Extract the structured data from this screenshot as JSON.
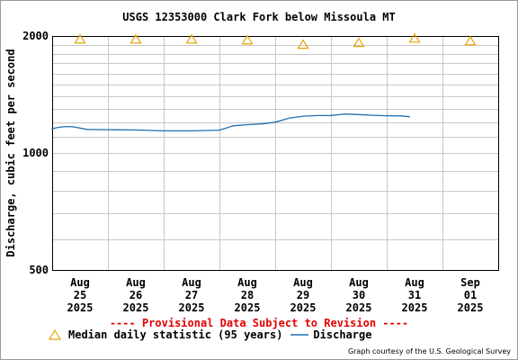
{
  "title": "USGS 12353000 Clark Fork below Missoula MT",
  "provisional_notice": "---- Provisional Data Subject to Revision ----",
  "legend": {
    "median_label": "Median daily statistic (95 years)",
    "discharge_label": "Discharge"
  },
  "credit": "Graph courtesy of the U.S. Geological Survey",
  "colors": {
    "discharge": "#1f6fb0",
    "median": "#e8a200",
    "grid": "#c8c8c8",
    "provisional": "#e00000"
  },
  "chart_data": {
    "type": "line",
    "ylabel": "Discharge, cubic feet per second",
    "yscale": "log",
    "ylim": [
      500,
      2000
    ],
    "ytick_labels": [
      "2000",
      "1000",
      "500"
    ],
    "x_ticks": [
      {
        "lines": [
          "Aug",
          "25",
          "2025"
        ]
      },
      {
        "lines": [
          "Aug",
          "26",
          "2025"
        ]
      },
      {
        "lines": [
          "Aug",
          "27",
          "2025"
        ]
      },
      {
        "lines": [
          "Aug",
          "28",
          "2025"
        ]
      },
      {
        "lines": [
          "Aug",
          "29",
          "2025"
        ]
      },
      {
        "lines": [
          "Aug",
          "30",
          "2025"
        ]
      },
      {
        "lines": [
          "Aug",
          "31",
          "2025"
        ]
      },
      {
        "lines": [
          "Sep",
          "01",
          "2025"
        ]
      }
    ],
    "grid": true,
    "median": [
      {
        "date": "2025-08-25",
        "value": 1960
      },
      {
        "date": "2025-08-26",
        "value": 1960
      },
      {
        "date": "2025-08-27",
        "value": 1960
      },
      {
        "date": "2025-08-28",
        "value": 1950
      },
      {
        "date": "2025-08-29",
        "value": 1900
      },
      {
        "date": "2025-08-30",
        "value": 1920
      },
      {
        "date": "2025-08-31",
        "value": 1970
      },
      {
        "date": "2025-09-01",
        "value": 1940
      }
    ],
    "discharge": [
      {
        "t": "2025-08-24 12:00",
        "value": 1158
      },
      {
        "t": "2025-08-24 18:00",
        "value": 1150
      },
      {
        "t": "2025-08-25 00:00",
        "value": 1155
      },
      {
        "t": "2025-08-25 03:00",
        "value": 1165
      },
      {
        "t": "2025-08-25 06:00",
        "value": 1170
      },
      {
        "t": "2025-08-25 09:00",
        "value": 1168
      },
      {
        "t": "2025-08-25 15:00",
        "value": 1150
      },
      {
        "t": "2025-08-26 00:00",
        "value": 1148
      },
      {
        "t": "2025-08-26 12:00",
        "value": 1146
      },
      {
        "t": "2025-08-27 00:00",
        "value": 1140
      },
      {
        "t": "2025-08-27 12:00",
        "value": 1140
      },
      {
        "t": "2025-08-28 00:00",
        "value": 1145
      },
      {
        "t": "2025-08-28 06:00",
        "value": 1175
      },
      {
        "t": "2025-08-28 12:00",
        "value": 1183
      },
      {
        "t": "2025-08-28 18:00",
        "value": 1188
      },
      {
        "t": "2025-08-29 00:00",
        "value": 1200
      },
      {
        "t": "2025-08-29 06:00",
        "value": 1230
      },
      {
        "t": "2025-08-29 12:00",
        "value": 1244
      },
      {
        "t": "2025-08-29 18:00",
        "value": 1248
      },
      {
        "t": "2025-08-30 00:00",
        "value": 1249
      },
      {
        "t": "2025-08-30 06:00",
        "value": 1260
      },
      {
        "t": "2025-08-30 12:00",
        "value": 1256
      },
      {
        "t": "2025-08-30 18:00",
        "value": 1250
      },
      {
        "t": "2025-08-31 00:00",
        "value": 1247
      },
      {
        "t": "2025-08-31 06:00",
        "value": 1246
      },
      {
        "t": "2025-08-31 10:00",
        "value": 1240
      }
    ]
  }
}
